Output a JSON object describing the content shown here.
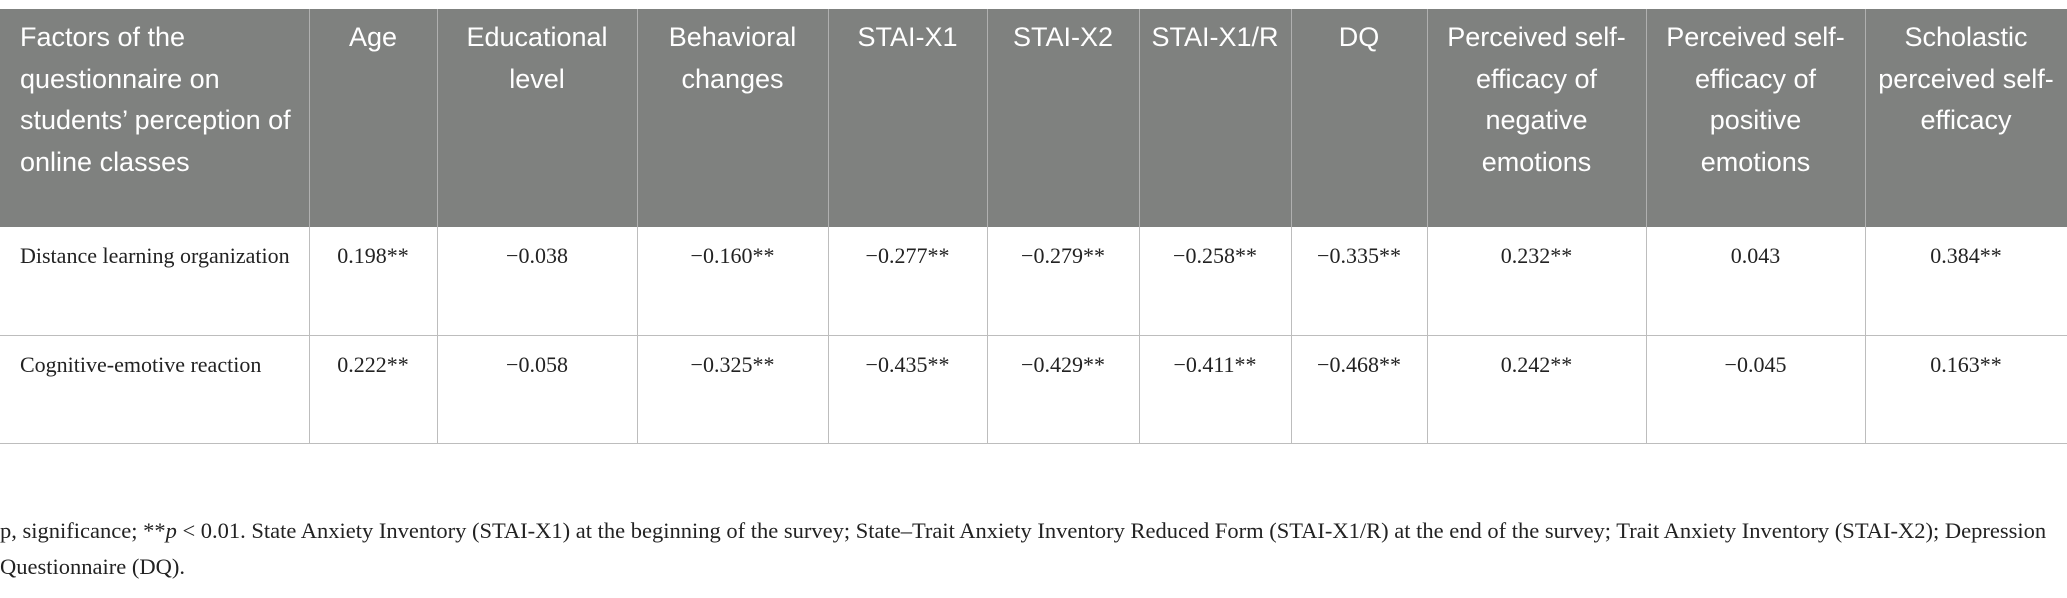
{
  "table": {
    "headers": [
      "Factors of the questionnaire on students’ perception of online classes",
      "Age",
      "Educational level",
      "Behavioral changes",
      "STAI-X1",
      "STAI-X2",
      "STAI-X1/R",
      "DQ",
      "Perceived self-efficacy of negative emotions",
      "Perceived self-efficacy of positive emotions",
      "Scholastic perceived self-efficacy"
    ],
    "rows": [
      {
        "label": "Distance learning organization",
        "cells": [
          "0.198**",
          "−0.038",
          "−0.160**",
          "−0.277**",
          "−0.279**",
          "−0.258**",
          "−0.335**",
          "0.232**",
          "0.043",
          "0.384**"
        ]
      },
      {
        "label": "Cognitive-emotive reaction",
        "cells": [
          "0.222**",
          "−0.058",
          "−0.325**",
          "−0.435**",
          "−0.429**",
          "−0.411**",
          "−0.468**",
          "0.242**",
          "−0.045",
          "0.163**"
        ]
      }
    ]
  },
  "footnote": {
    "prefix": "p, significance; **",
    "p_symbol": "p",
    "rest": " < 0.01. State Anxiety Inventory (STAI-X1) at the beginning of the survey; State–Trait Anxiety Inventory Reduced Form (STAI-X1/R) at the end of the survey; Trait Anxiety Inventory (STAI-X2); Depression Questionnaire (DQ)."
  }
}
